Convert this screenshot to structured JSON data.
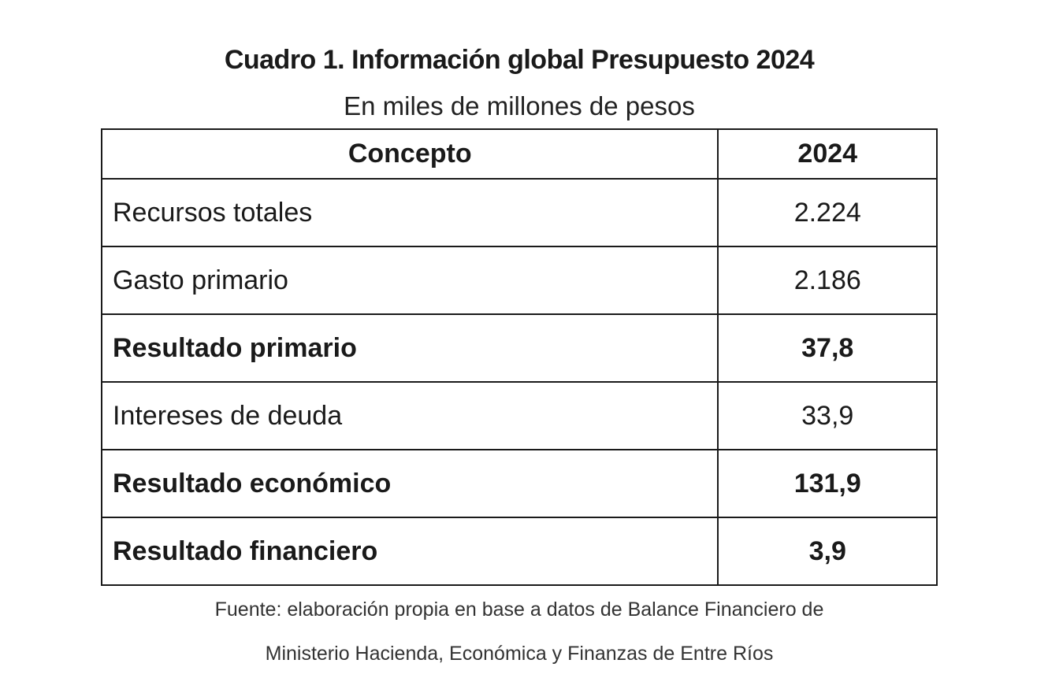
{
  "document": {
    "title": "Cuadro 1. Información global Presupuesto 2024",
    "subtitle": "En miles de millones de pesos"
  },
  "table": {
    "headers": [
      "Concepto",
      "2024"
    ],
    "rows": [
      {
        "concept": "Recursos totales",
        "value": "2.224",
        "bold": false
      },
      {
        "concept": "Gasto primario",
        "value": "2.186",
        "bold": false
      },
      {
        "concept": "Resultado primario",
        "value": "37,8",
        "bold": true
      },
      {
        "concept": "Intereses de deuda",
        "value": "33,9",
        "bold": false
      },
      {
        "concept": "Resultado económico",
        "value": "131,9",
        "bold": true
      },
      {
        "concept": "Resultado financiero",
        "value": "3,9",
        "bold": true
      }
    ]
  },
  "footer": {
    "line1": "Fuente: elaboración propia en base a datos de Balance Financiero de",
    "line2": "Ministerio Hacienda, Económica y Finanzas de Entre Ríos"
  }
}
